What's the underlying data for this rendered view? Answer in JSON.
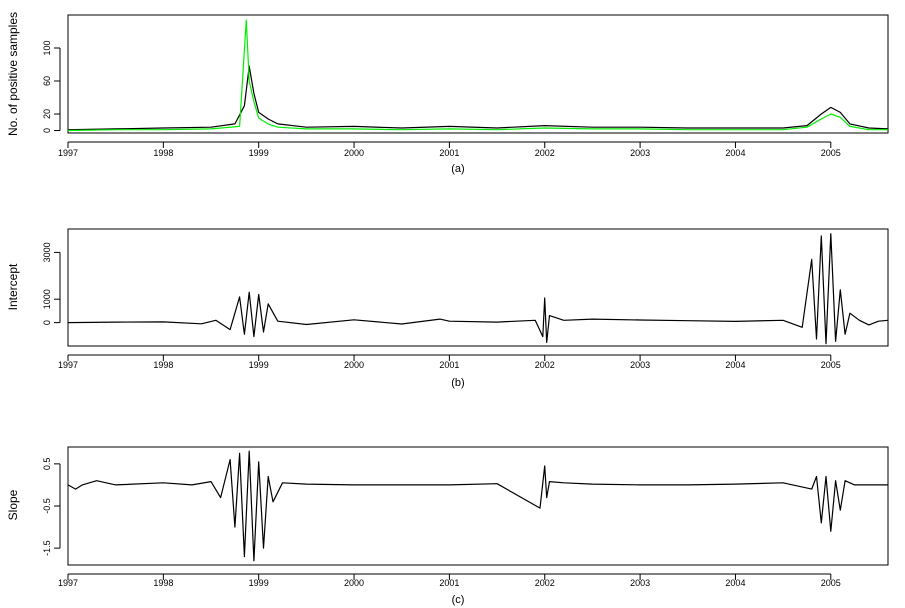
{
  "chart_data": [
    {
      "type": "line",
      "panel_label": "(a)",
      "ylabel": "No. of positive samples",
      "x_ticks": [
        "1997",
        "1998",
        "1999",
        "2000",
        "2001",
        "2002",
        "2003",
        "2004",
        "2005"
      ],
      "y_ticks": [
        0,
        20,
        60,
        100
      ],
      "xlim": [
        1997.0,
        2005.6
      ],
      "ylim": [
        -3,
        140
      ],
      "grid": false,
      "series": [
        {
          "color": "#000000",
          "x": [
            1997.0,
            1997.5,
            1998.0,
            1998.5,
            1998.75,
            1998.85,
            1998.9,
            1998.95,
            1999.0,
            1999.1,
            1999.2,
            1999.5,
            2000.0,
            2000.5,
            2001.0,
            2001.5,
            2002.0,
            2002.5,
            2003.0,
            2003.5,
            2004.0,
            2004.5,
            2004.75,
            2004.9,
            2005.0,
            2005.1,
            2005.2,
            2005.4,
            2005.6
          ],
          "values": [
            1,
            2,
            3,
            4,
            8,
            30,
            78,
            45,
            22,
            14,
            8,
            4,
            5,
            3,
            5,
            3,
            6,
            4,
            4,
            3,
            3,
            3,
            6,
            20,
            28,
            22,
            8,
            3,
            2
          ]
        },
        {
          "color": "#00ee00",
          "x": [
            1997.0,
            1997.5,
            1998.0,
            1998.5,
            1998.8,
            1998.87,
            1998.9,
            1998.95,
            1999.0,
            1999.1,
            1999.2,
            1999.5,
            2000.0,
            2000.5,
            2001.0,
            2001.5,
            2002.0,
            2002.5,
            2003.0,
            2003.5,
            2004.0,
            2004.5,
            2004.75,
            2004.9,
            2005.0,
            2005.1,
            2005.2,
            2005.4,
            2005.6
          ],
          "values": [
            0,
            1,
            1,
            2,
            5,
            134,
            60,
            35,
            15,
            8,
            4,
            2,
            2,
            1,
            2,
            1,
            3,
            2,
            2,
            1,
            1,
            1,
            4,
            14,
            20,
            16,
            5,
            1,
            1
          ]
        }
      ]
    },
    {
      "type": "line",
      "panel_label": "(b)",
      "ylabel": "Intercept",
      "x_ticks": [
        "1997",
        "1998",
        "1999",
        "2000",
        "2001",
        "2002",
        "2003",
        "2004",
        "2005"
      ],
      "y_ticks": [
        0,
        1000,
        3000
      ],
      "xlim": [
        1997.0,
        2005.6
      ],
      "ylim": [
        -1000,
        4000
      ],
      "grid": false,
      "series": [
        {
          "color": "#000000",
          "x": [
            1997.0,
            1997.5,
            1998.0,
            1998.4,
            1998.55,
            1998.7,
            1998.8,
            1998.85,
            1998.9,
            1998.95,
            1999.0,
            1999.05,
            1999.1,
            1999.2,
            1999.5,
            2000.0,
            2000.5,
            2000.9,
            2001.0,
            2001.5,
            2001.9,
            2001.98,
            2002.0,
            2002.02,
            2002.05,
            2002.2,
            2002.5,
            2003.0,
            2003.5,
            2004.0,
            2004.5,
            2004.7,
            2004.8,
            2004.85,
            2004.9,
            2004.95,
            2005.0,
            2005.05,
            2005.1,
            2005.15,
            2005.2,
            2005.3,
            2005.4,
            2005.5,
            2005.6
          ],
          "values": [
            0,
            20,
            30,
            -50,
            100,
            -300,
            1100,
            -500,
            1300,
            -600,
            1200,
            -400,
            800,
            60,
            -80,
            120,
            -60,
            150,
            60,
            20,
            100,
            -600,
            1050,
            -850,
            300,
            100,
            150,
            110,
            80,
            50,
            100,
            -200,
            2700,
            -700,
            3700,
            -900,
            3800,
            -800,
            1400,
            -500,
            400,
            100,
            -100,
            60,
            100
          ]
        }
      ]
    },
    {
      "type": "line",
      "panel_label": "(c)",
      "ylabel": "Slope",
      "x_ticks": [
        "1997",
        "1998",
        "1999",
        "2000",
        "2001",
        "2002",
        "2003",
        "2004",
        "2005"
      ],
      "y_ticks": [
        0.5,
        -0.5,
        -1.5
      ],
      "xlim": [
        1997.0,
        2005.6
      ],
      "ylim": [
        -1.9,
        0.9
      ],
      "grid": false,
      "series": [
        {
          "color": "#000000",
          "x": [
            1997.0,
            1997.08,
            1997.15,
            1997.3,
            1997.5,
            1998.0,
            1998.3,
            1998.5,
            1998.6,
            1998.7,
            1998.75,
            1998.8,
            1998.85,
            1998.9,
            1998.95,
            1999.0,
            1999.05,
            1999.1,
            1999.15,
            1999.25,
            1999.5,
            2000.0,
            2000.5,
            2001.0,
            2001.5,
            2001.95,
            2002.0,
            2002.02,
            2002.05,
            2002.2,
            2002.5,
            2003.0,
            2003.5,
            2004.0,
            2004.5,
            2004.8,
            2004.85,
            2004.9,
            2004.95,
            2005.0,
            2005.05,
            2005.1,
            2005.15,
            2005.25,
            2005.4,
            2005.6
          ],
          "values": [
            0.0,
            -0.1,
            0.0,
            0.1,
            0.0,
            0.05,
            0.0,
            0.08,
            -0.3,
            0.6,
            -1.0,
            0.75,
            -1.7,
            0.8,
            -1.8,
            0.55,
            -1.5,
            0.2,
            -0.4,
            0.05,
            0.02,
            0.0,
            0.0,
            0.0,
            0.03,
            -0.55,
            0.45,
            -0.3,
            0.08,
            0.05,
            0.02,
            0.0,
            0.0,
            0.02,
            0.05,
            -0.1,
            0.2,
            -0.9,
            0.2,
            -1.1,
            0.1,
            -0.6,
            0.1,
            0.0,
            0.0,
            0.0
          ]
        }
      ]
    }
  ]
}
